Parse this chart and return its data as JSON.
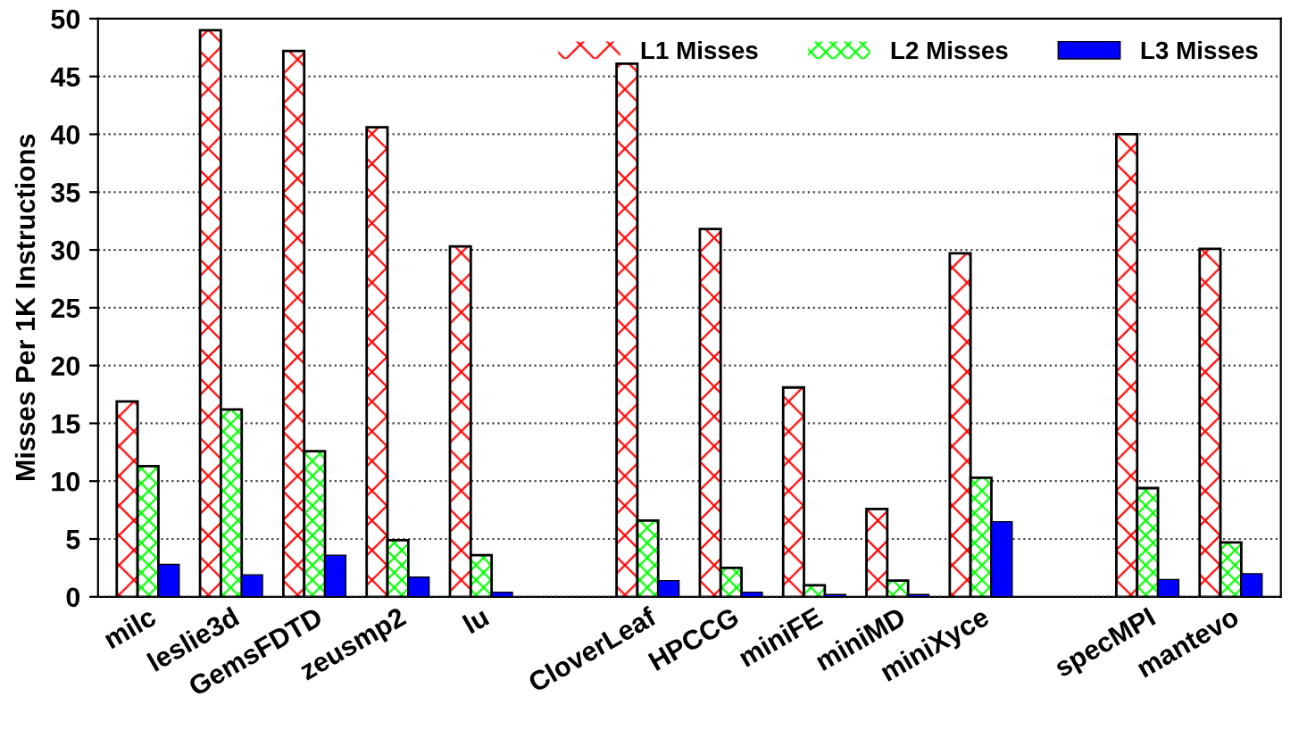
{
  "chart_data": {
    "type": "bar",
    "ylabel": "Misses Per 1K Instructions",
    "categories": [
      "milc",
      "leslie3d",
      "GemsFDTD",
      "zeusmp2",
      "lu",
      null,
      "CloverLeaf",
      "HPCCG",
      "miniFE",
      "miniMD",
      "miniXyce",
      null,
      "specMPI",
      "mantevo"
    ],
    "series": [
      {
        "name": "L1 Misses",
        "color": "#ff0000",
        "values": [
          16.9,
          49,
          47.2,
          40.6,
          30.3,
          null,
          46.1,
          31.8,
          18.1,
          7.6,
          29.7,
          null,
          40,
          30.1
        ]
      },
      {
        "name": "L2 Misses",
        "color": "#00ff00",
        "values": [
          11.3,
          16.2,
          12.6,
          4.9,
          3.6,
          null,
          6.6,
          2.5,
          1.0,
          1.4,
          10.3,
          null,
          9.4,
          4.7
        ]
      },
      {
        "name": "L3 Misses",
        "color": "#0000ff",
        "values": [
          2.8,
          1.9,
          3.6,
          1.7,
          0.4,
          null,
          1.4,
          0.4,
          0.2,
          0.2,
          6.5,
          null,
          1.5,
          2.0
        ]
      }
    ],
    "ylim": [
      0,
      50
    ],
    "yticks": [
      0,
      5,
      10,
      15,
      20,
      25,
      30,
      35,
      40,
      45,
      50
    ],
    "grid": "y",
    "legend": "top right"
  }
}
